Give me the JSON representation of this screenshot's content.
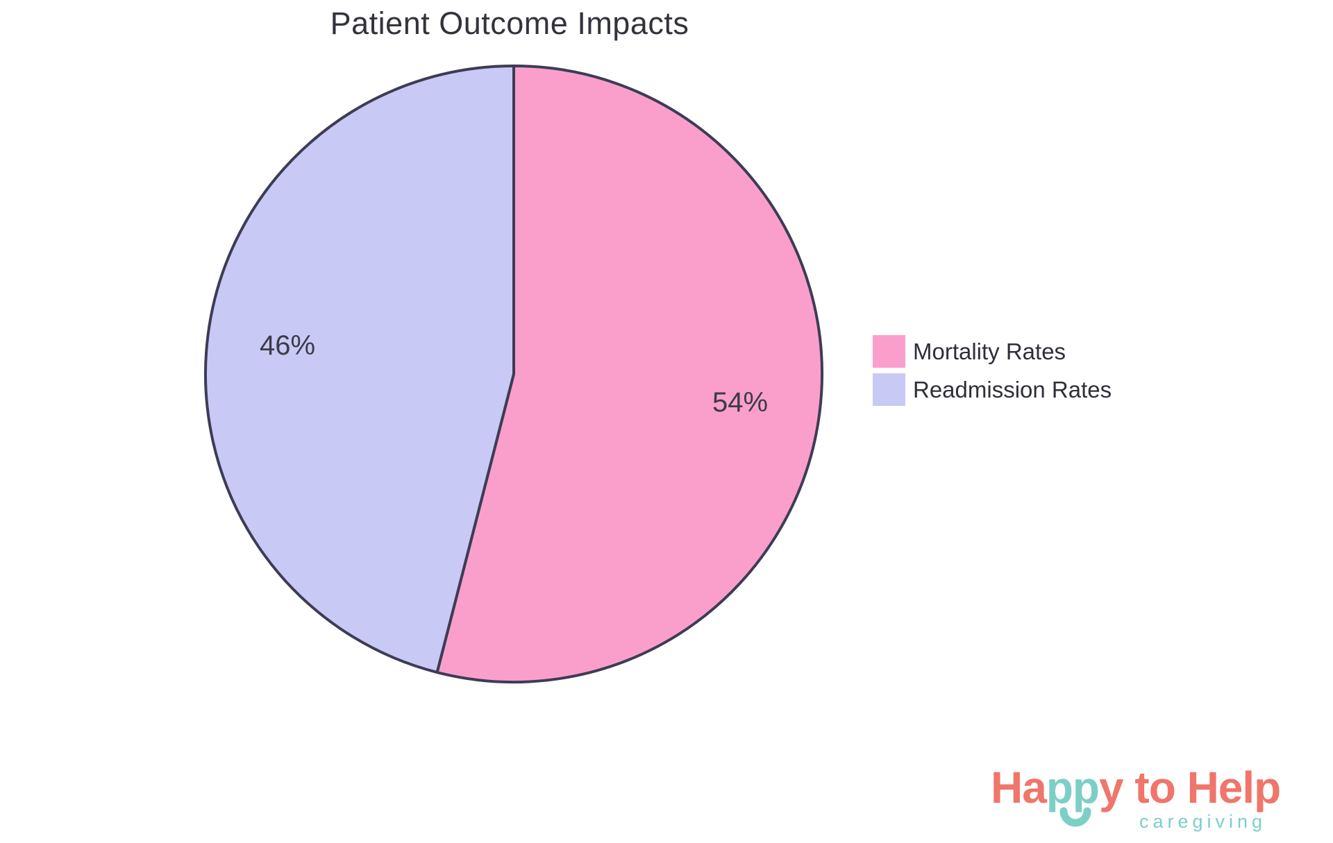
{
  "chart_data": {
    "type": "pie",
    "title": "Patient Outcome Impacts",
    "labels": [
      "Mortality Rates",
      "Readmission Rates"
    ],
    "values": [
      54,
      46
    ],
    "unit": "%",
    "slice_labels": [
      "54%",
      "46%"
    ],
    "colors": [
      "#FA9FCC",
      "#C9C9F5"
    ],
    "stroke_color": "#3D3C55",
    "start_angle_deg": 0,
    "direction": "clockwise",
    "legend_position": "right",
    "title_color": "#33333E",
    "slice_label_color": "#3B3B47",
    "legend_text_color": "#2F2F39"
  },
  "legend": {
    "items": [
      {
        "label": "Mortality Rates",
        "color": "#FA9FCC"
      },
      {
        "label": "Readmission Rates",
        "color": "#C9C9F5"
      }
    ]
  },
  "logo": {
    "text": "Happy to Help",
    "part1": "Ha",
    "part2": "pp",
    "part3": "y to Help",
    "tagline": "caregiving",
    "coral": "#F0756A",
    "teal": "#7CCFC6"
  }
}
